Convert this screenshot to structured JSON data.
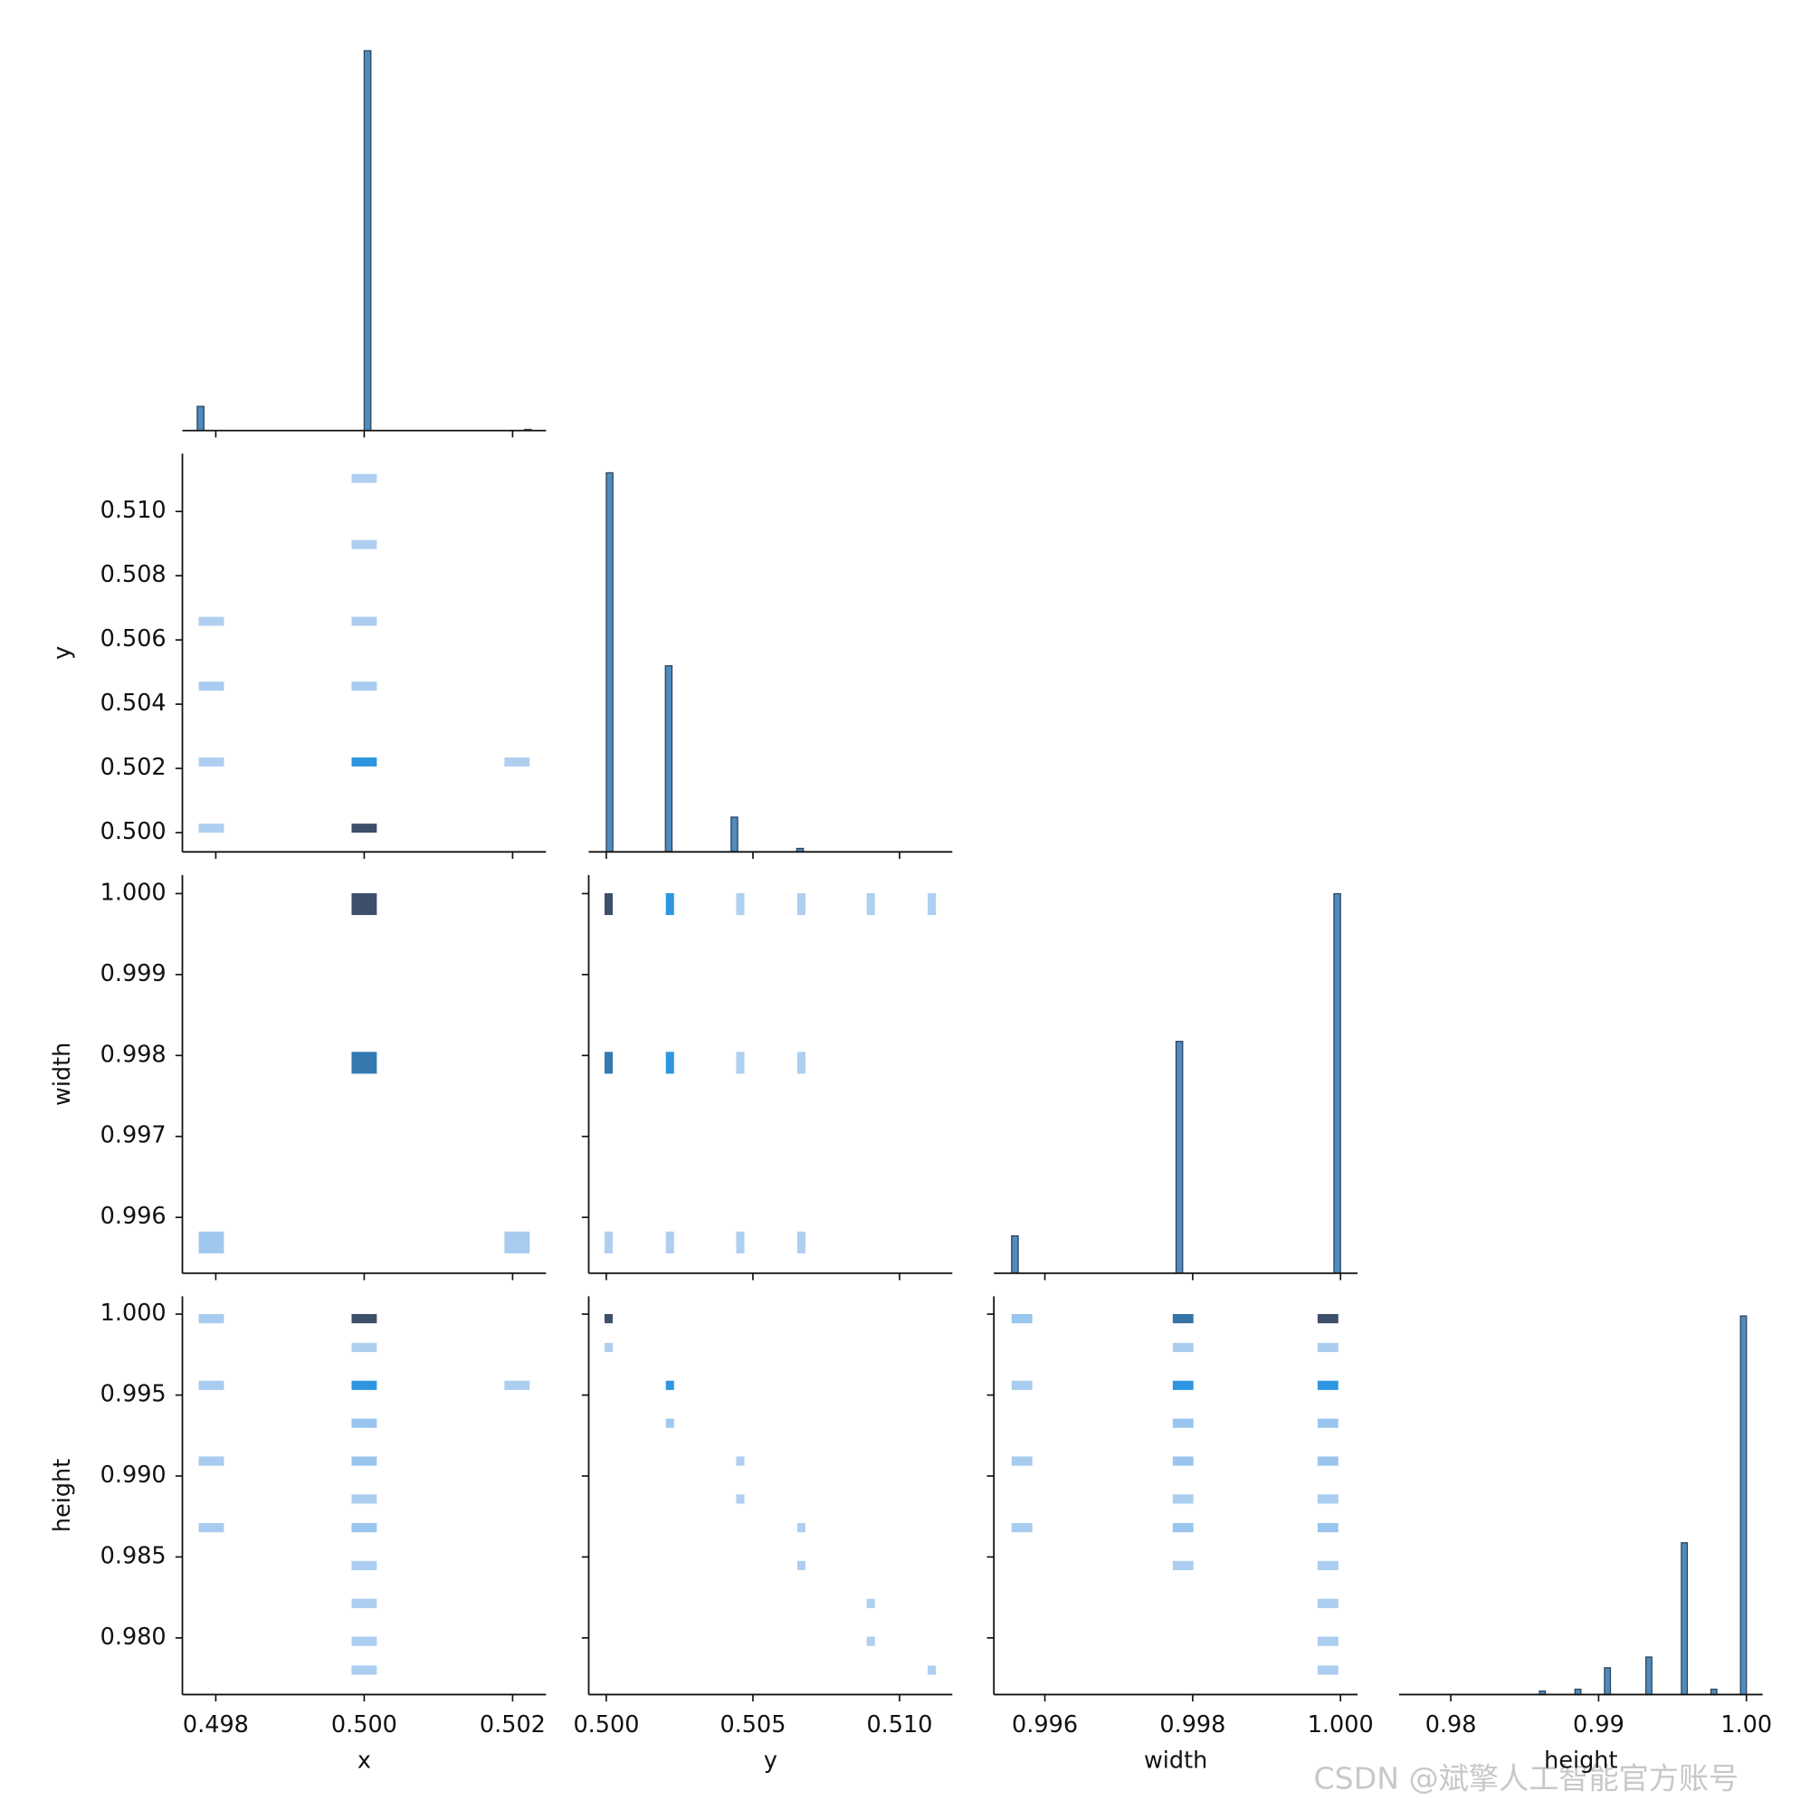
{
  "chart_data": {
    "type": "pairplot",
    "variables": [
      {
        "label": "x",
        "lim": [
          0.49755,
          0.50245
        ],
        "xticks": [
          {
            "value": 0.498,
            "label": "0.498"
          },
          {
            "value": 0.5,
            "label": "0.500"
          },
          {
            "value": 0.502,
            "label": "0.502"
          }
        ]
      },
      {
        "label": "y",
        "lim": [
          0.4994,
          0.5118
        ],
        "xticks": [
          {
            "value": 0.5,
            "label": "0.500"
          },
          {
            "value": 0.505,
            "label": "0.505"
          },
          {
            "value": 0.51,
            "label": "0.510"
          }
        ],
        "yticks": [
          {
            "value": 0.5,
            "label": "0.500"
          },
          {
            "value": 0.502,
            "label": "0.502"
          },
          {
            "value": 0.504,
            "label": "0.504"
          },
          {
            "value": 0.506,
            "label": "0.506"
          },
          {
            "value": 0.508,
            "label": "0.508"
          },
          {
            "value": 0.51,
            "label": "0.510"
          }
        ]
      },
      {
        "label": "width",
        "lim": [
          0.99531,
          1.00023
        ],
        "xticks": [
          {
            "value": 0.996,
            "label": "0.996"
          },
          {
            "value": 0.998,
            "label": "0.998"
          },
          {
            "value": 1,
            "label": "1.000"
          }
        ],
        "yticks": [
          {
            "value": 0.996,
            "label": "0.996"
          },
          {
            "value": 0.997,
            "label": "0.997"
          },
          {
            "value": 0.998,
            "label": "0.998"
          },
          {
            "value": 0.999,
            "label": "0.999"
          },
          {
            "value": 1,
            "label": "1.000"
          }
        ]
      },
      {
        "label": "height",
        "lim": [
          0.9765,
          1.0011
        ],
        "xticks": [
          0.98,
          0.99,
          {
            "value": 1,
            "label": "1.00"
          }
        ],
        "yticks": [
          {
            "value": 0.98,
            "label": "0.980"
          },
          {
            "value": 0.985,
            "label": "0.985"
          },
          {
            "value": 0.99,
            "label": "0.990"
          },
          {
            "value": 0.995,
            "label": "0.995"
          },
          {
            "value": 1,
            "label": "1.000"
          }
        ]
      }
    ],
    "hist_color": "#4f8cbd",
    "hist_edge": "#2a435c",
    "diagonal": [
      {
        "ylim": [
          0,
          346
        ],
        "bins": [
          0.49775,
          0.49784,
          0.49793,
          0.49802,
          0.49811,
          0.4982,
          0.49829,
          0.49838,
          0.49847,
          0.49856,
          0.49865,
          0.49874,
          0.49883,
          0.49892,
          0.49901,
          0.4991,
          0.49919,
          0.49928,
          0.49937,
          0.49946,
          0.49955,
          0.49964,
          0.49973,
          0.49982,
          0.49991,
          0.5,
          0.50009,
          0.50018,
          0.50027,
          0.50036,
          0.50045,
          0.50054,
          0.50063,
          0.50072,
          0.50081,
          0.5009,
          0.50099,
          0.50108,
          0.50117,
          0.50126,
          0.50135,
          0.50144,
          0.50153,
          0.50162,
          0.50171,
          0.5018,
          0.50189,
          0.50198,
          0.50207,
          0.50216,
          0.50225
        ],
        "counts": [
          21,
          0,
          0,
          0,
          0,
          0,
          0,
          0,
          0,
          0,
          0,
          0,
          0,
          0,
          0,
          0,
          0,
          0,
          0,
          0,
          0,
          0,
          0,
          0,
          0,
          330,
          0,
          0,
          0,
          0,
          0,
          0,
          0,
          0,
          0,
          0,
          0,
          0,
          0,
          0,
          0,
          0,
          0,
          0,
          0,
          0,
          0,
          0,
          0,
          1
        ]
      },
      {
        "ylim": [
          0,
          229
        ],
        "bins": [
          0.5,
          0.500224,
          0.500448,
          0.500672,
          0.500896,
          0.50112,
          0.501344,
          0.501568,
          0.501792,
          0.502016,
          0.50224,
          0.502464,
          0.502688,
          0.502912,
          0.503136,
          0.50336,
          0.503584,
          0.503808,
          0.504032,
          0.504256,
          0.50448,
          0.504704,
          0.504928,
          0.505152,
          0.505376,
          0.5056,
          0.505824,
          0.506048,
          0.506272,
          0.506496,
          0.50672,
          0.506944,
          0.507168,
          0.507392,
          0.507616,
          0.50784,
          0.508064,
          0.508288,
          0.508512,
          0.508736,
          0.50896,
          0.509184,
          0.509408,
          0.509632,
          0.509856,
          0.51008,
          0.510304,
          0.510528,
          0.510752,
          0.510976,
          0.5112
        ],
        "counts": [
          218,
          0,
          0,
          0,
          0,
          0,
          0,
          0,
          0,
          107,
          0,
          0,
          0,
          0,
          0,
          0,
          0,
          0,
          0,
          20,
          0,
          0,
          0,
          0,
          0,
          0,
          0,
          0,
          0,
          2,
          0,
          0,
          0,
          0,
          0,
          0,
          0,
          0,
          0,
          0,
          0,
          0,
          0,
          0,
          0,
          0,
          0,
          0,
          0,
          0
        ]
      },
      {
        "ylim": [
          0,
          213
        ],
        "bins": [
          0.99555,
          0.995639,
          0.995728,
          0.995817,
          0.995906,
          0.995995,
          0.996084,
          0.996173,
          0.996262,
          0.996351,
          0.99644,
          0.996529,
          0.996618,
          0.996707,
          0.996796,
          0.996885,
          0.996974,
          0.997063,
          0.997152,
          0.997241,
          0.99733,
          0.997419,
          0.997508,
          0.997597,
          0.997686,
          0.997775,
          0.997864,
          0.997953,
          0.998042,
          0.998131,
          0.99822,
          0.998309,
          0.998398,
          0.998487,
          0.998576,
          0.998665,
          0.998754,
          0.998843,
          0.998932,
          0.999021,
          0.99911,
          0.999199,
          0.999288,
          0.999377,
          0.999466,
          0.999555,
          0.999644,
          0.999733,
          0.999822,
          0.999911,
          1.0
        ],
        "counts": [
          20,
          0,
          0,
          0,
          0,
          0,
          0,
          0,
          0,
          0,
          0,
          0,
          0,
          0,
          0,
          0,
          0,
          0,
          0,
          0,
          0,
          0,
          0,
          0,
          0,
          124,
          0,
          0,
          0,
          0,
          0,
          0,
          0,
          0,
          0,
          0,
          0,
          0,
          0,
          0,
          0,
          0,
          0,
          0,
          0,
          0,
          0,
          0,
          0,
          203
        ]
      },
      {
        "ylim": [
          0,
          223
        ],
        "bins": [
          0.98,
          0.9804,
          0.9808,
          0.9812,
          0.9816,
          0.982,
          0.9824,
          0.9828,
          0.9832,
          0.9836,
          0.984,
          0.9844,
          0.9848,
          0.9852,
          0.9856,
          0.986,
          0.9864,
          0.9868,
          0.9872,
          0.9876,
          0.988,
          0.9884,
          0.9888,
          0.9892,
          0.9896,
          0.99,
          0.9904,
          0.9908,
          0.9912,
          0.9916,
          0.992,
          0.9924,
          0.9928,
          0.9932,
          0.9936,
          0.994,
          0.9944,
          0.9948,
          0.9952,
          0.9956,
          0.996,
          0.9964,
          0.9968,
          0.9972,
          0.9976,
          0.998,
          0.9984,
          0.9988,
          0.9992,
          0.9996,
          1.0
        ],
        "counts": [
          0,
          0,
          0,
          0,
          0,
          0,
          0,
          0,
          0,
          0,
          0,
          0,
          0,
          0,
          0,
          2,
          0,
          0,
          0,
          0,
          0,
          3,
          0,
          0,
          0,
          0,
          15,
          0,
          0,
          0,
          0,
          0,
          0,
          21,
          0,
          0,
          0,
          0,
          0,
          85,
          0,
          0,
          0,
          0,
          3,
          0,
          0,
          0,
          0,
          212
        ]
      }
    ],
    "cmap": [
      "#bcd5f2",
      "#2e96e0",
      "#3d4f6b"
    ],
    "vmax": 200,
    "pairs": [
      {
        "bin_size": [
          0.00034,
          0.00028
        ],
        "x": [
          0.49794,
          0.49794,
          0.49794,
          0.49794,
          0.5,
          0.5,
          0.5,
          0.5,
          0.5,
          0.5,
          0.50206
        ],
        "y": [
          0.50658,
          0.50456,
          0.5022,
          0.50014,
          0.51103,
          0.50897,
          0.50658,
          0.50456,
          0.5022,
          0.50014,
          0.5022
        ],
        "values": [
          10,
          15,
          10,
          10,
          10,
          10,
          12,
          15,
          100,
          200,
          10
        ]
      },
      {
        "bin_size": [
          0.00034,
          0.00027
        ],
        "x": [
          0.5,
          0.5,
          0.49794,
          0.50206
        ],
        "y": [
          0.99987,
          0.99791,
          0.99569,
          0.99569
        ],
        "values": [
          200,
          140,
          20,
          15
        ]
      },
      {
        "bin_size": [
          0.00028,
          0.00027
        ],
        "x": [
          0.50008,
          0.50217,
          0.50457,
          0.50665,
          0.50902,
          0.5111,
          0.50008,
          0.50217,
          0.50457,
          0.50665,
          0.50008,
          0.50217,
          0.50457,
          0.50665
        ],
        "y": [
          0.99987,
          0.99987,
          0.99987,
          0.99987,
          0.99987,
          0.99987,
          0.99791,
          0.99791,
          0.99791,
          0.99791,
          0.99569,
          0.99569,
          0.99569,
          0.99569
        ],
        "values": [
          200,
          100,
          10,
          10,
          10,
          10,
          140,
          100,
          10,
          10,
          10,
          10,
          10,
          10
        ]
      },
      {
        "bin_size": [
          0.00034,
          0.00057
        ],
        "x": [
          0.49794,
          0.49794,
          0.49794,
          0.49794,
          0.5,
          0.5,
          0.5,
          0.5,
          0.5,
          0.5,
          0.5,
          0.5,
          0.5,
          0.5,
          0.5,
          0.50206
        ],
        "y": [
          0.99972,
          0.9956,
          0.99092,
          0.98681,
          0.99972,
          0.99794,
          0.9956,
          0.99326,
          0.99092,
          0.98858,
          0.98681,
          0.98447,
          0.98213,
          0.97979,
          0.97801,
          0.9956
        ],
        "values": [
          15,
          15,
          15,
          15,
          200,
          10,
          100,
          25,
          25,
          12,
          25,
          12,
          12,
          12,
          12,
          12
        ]
      },
      {
        "bin_size": [
          0.00028,
          0.00057
        ],
        "x": [
          0.50008,
          0.50008,
          0.50217,
          0.50217,
          0.50457,
          0.50457,
          0.50665,
          0.50665,
          0.50902,
          0.50902,
          0.5111
        ],
        "y": [
          0.99972,
          0.99794,
          0.9956,
          0.99326,
          0.99092,
          0.98858,
          0.98681,
          0.98447,
          0.98213,
          0.97979,
          0.97801
        ],
        "values": [
          200,
          10,
          100,
          20,
          10,
          10,
          10,
          10,
          10,
          10,
          10
        ]
      },
      {
        "bin_size": [
          0.00028,
          0.00057
        ],
        "x": [
          0.99569,
          0.99569,
          0.99569,
          0.99569,
          0.99787,
          0.99787,
          0.99787,
          0.99787,
          0.99787,
          0.99787,
          0.99787,
          0.99787,
          0.99983,
          0.99983,
          0.99983,
          0.99983,
          0.99983,
          0.99983,
          0.99983,
          0.99983,
          0.99983,
          0.99983,
          0.99983
        ],
        "y": [
          0.99972,
          0.9956,
          0.99092,
          0.98681,
          0.99972,
          0.99794,
          0.9956,
          0.99326,
          0.99092,
          0.98858,
          0.98681,
          0.98447,
          0.99972,
          0.99794,
          0.9956,
          0.99326,
          0.99092,
          0.98858,
          0.98681,
          0.98447,
          0.98213,
          0.97979,
          0.97801
        ],
        "values": [
          25,
          15,
          15,
          15,
          150,
          12,
          100,
          25,
          25,
          12,
          25,
          12,
          200,
          12,
          100,
          25,
          25,
          12,
          25,
          12,
          12,
          12,
          12
        ]
      }
    ]
  },
  "watermark": "CSDN @斌擎人工智能官方账号"
}
